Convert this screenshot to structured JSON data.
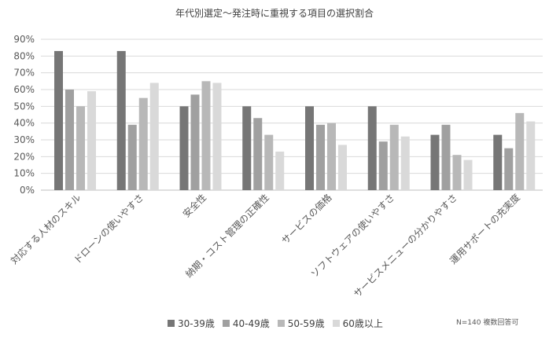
{
  "chart_data": {
    "type": "bar",
    "title": "年代別選定〜発注時に重視する項目の選択割合",
    "categories": [
      "対応する人材のスキル",
      "ドローンの使いやすさ",
      "安全性",
      "納期・コスト管理の正確性",
      "サービスの価格",
      "ソフトウェアの使いやすさ",
      "サービスメニューの分かりやすさ",
      "運用サポートの充実度"
    ],
    "series": [
      {
        "name": "30-39歳",
        "color": "#767676",
        "values": [
          83,
          83,
          50,
          50,
          50,
          50,
          33,
          33
        ]
      },
      {
        "name": "40-49歳",
        "color": "#a0a0a0",
        "values": [
          60,
          39,
          57,
          43,
          39,
          29,
          39,
          25
        ]
      },
      {
        "name": "50-59歳",
        "color": "#b8b8b8",
        "values": [
          50,
          55,
          65,
          33,
          40,
          39,
          21,
          46
        ]
      },
      {
        "name": "60歳以上",
        "color": "#d9d9d9",
        "values": [
          59,
          64,
          64,
          23,
          27,
          32,
          18,
          41
        ]
      }
    ],
    "yticks": [
      "0%",
      "10%",
      "20%",
      "30%",
      "40%",
      "50%",
      "60%",
      "70%",
      "80%",
      "90%"
    ],
    "ylim": [
      0,
      90
    ],
    "grid": true,
    "legend_position": "bottom",
    "note": "N=140 複数回答可"
  }
}
